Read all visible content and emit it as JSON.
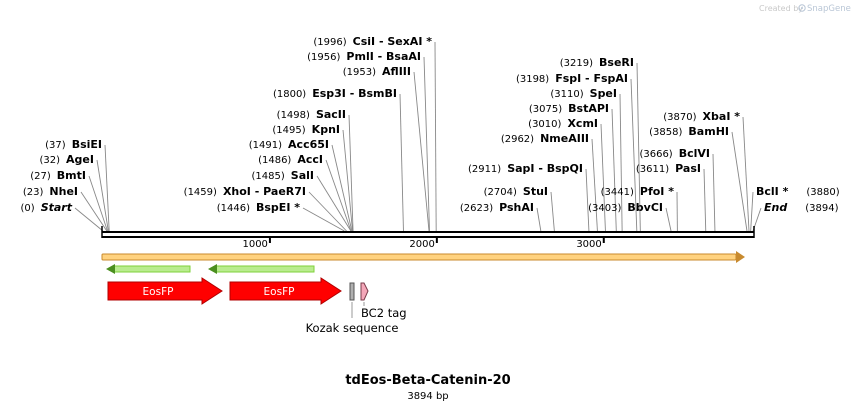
{
  "credit": {
    "prefix": "Created by",
    "brand": "SnapGene"
  },
  "map": {
    "name": "tdEos-Beta-Catenin-20",
    "length_text": "3894 bp",
    "total_bp": 3894,
    "ticks": [
      {
        "pos": 1000,
        "label": "1000"
      },
      {
        "pos": 2000,
        "label": "2000"
      },
      {
        "pos": 3000,
        "label": "3000"
      }
    ]
  },
  "sites": [
    {
      "pos": "(0)",
      "name": "Start",
      "bp": 0,
      "ital": true,
      "bold": true
    },
    {
      "pos": "(23)",
      "name": "NheI",
      "bp": 23
    },
    {
      "pos": "(27)",
      "name": "BmtI",
      "bp": 27
    },
    {
      "pos": "(32)",
      "name": "AgeI",
      "bp": 32
    },
    {
      "pos": "(37)",
      "name": "BsiEI",
      "bp": 37
    },
    {
      "pos": "(1446)",
      "name": "BspEI *",
      "bp": 1446
    },
    {
      "pos": "(1459)",
      "name": "XhoI  - PaeR7I",
      "bp": 1459
    },
    {
      "pos": "(1485)",
      "name": "SalI",
      "bp": 1485
    },
    {
      "pos": "(1486)",
      "name": "AccI",
      "bp": 1486
    },
    {
      "pos": "(1491)",
      "name": "Acc65I",
      "bp": 1491
    },
    {
      "pos": "(1495)",
      "name": "KpnI",
      "bp": 1495
    },
    {
      "pos": "(1498)",
      "name": "SacII",
      "bp": 1498
    },
    {
      "pos": "(1800)",
      "name": "Esp3I  - BsmBI",
      "bp": 1800
    },
    {
      "pos": "(1953)",
      "name": "AflIII",
      "bp": 1953
    },
    {
      "pos": "(1956)",
      "name": "PmlI  - BsaAI",
      "bp": 1956
    },
    {
      "pos": "(1996)",
      "name": "CsiI  - SexAI *",
      "bp": 1996
    },
    {
      "pos": "(2623)",
      "name": "PshAI",
      "bp": 2623
    },
    {
      "pos": "(2704)",
      "name": "StuI",
      "bp": 2704
    },
    {
      "pos": "(2911)",
      "name": "SapI  - BspQI",
      "bp": 2911
    },
    {
      "pos": "(2962)",
      "name": "NmeAIII",
      "bp": 2962
    },
    {
      "pos": "(3010)",
      "name": "XcmI",
      "bp": 3010
    },
    {
      "pos": "(3075)",
      "name": "BstAPI",
      "bp": 3075
    },
    {
      "pos": "(3110)",
      "name": "SpeI",
      "bp": 3110
    },
    {
      "pos": "(3198)",
      "name": "FspI  - FspAI",
      "bp": 3198
    },
    {
      "pos": "(3219)",
      "name": "BseRI",
      "bp": 3219
    },
    {
      "pos": "(3403)",
      "name": "BbvCI",
      "bp": 3403
    },
    {
      "pos": "(3441)",
      "name": "PfoI *",
      "bp": 3441
    },
    {
      "pos": "(3611)",
      "name": "PasI",
      "bp": 3611
    },
    {
      "pos": "(3666)",
      "name": "BclVI",
      "bp": 3666
    },
    {
      "pos": "(3858)",
      "name": "BamHI",
      "bp": 3858
    },
    {
      "pos": "(3870)",
      "name": "XbaI *",
      "bp": 3870
    },
    {
      "pos": "(3880)",
      "name": "BclI *",
      "bp": 3880
    },
    {
      "pos": "(3894)",
      "name": "End",
      "bp": 3894,
      "ital": true,
      "bold": true
    }
  ],
  "features": [
    {
      "label": "EosFP",
      "type": "arrow",
      "color": "#ff0000",
      "text_color": "#ffffff"
    },
    {
      "label": "EosFP",
      "type": "arrow",
      "color": "#ff0000",
      "text_color": "#ffffff"
    },
    {
      "label": "Kozak sequence",
      "type": "box",
      "color": "#b0b0b0"
    },
    {
      "label": "BC2 tag",
      "type": "arrow-small",
      "color": "#f4a7b9"
    }
  ],
  "colors": {
    "backbone": "#000000",
    "orf_fill": "#ffd27f",
    "orf_stroke": "#c88a2e",
    "green_arrow": "#7fd13b",
    "feature_red": "#ff0000",
    "leader": "#999999"
  }
}
